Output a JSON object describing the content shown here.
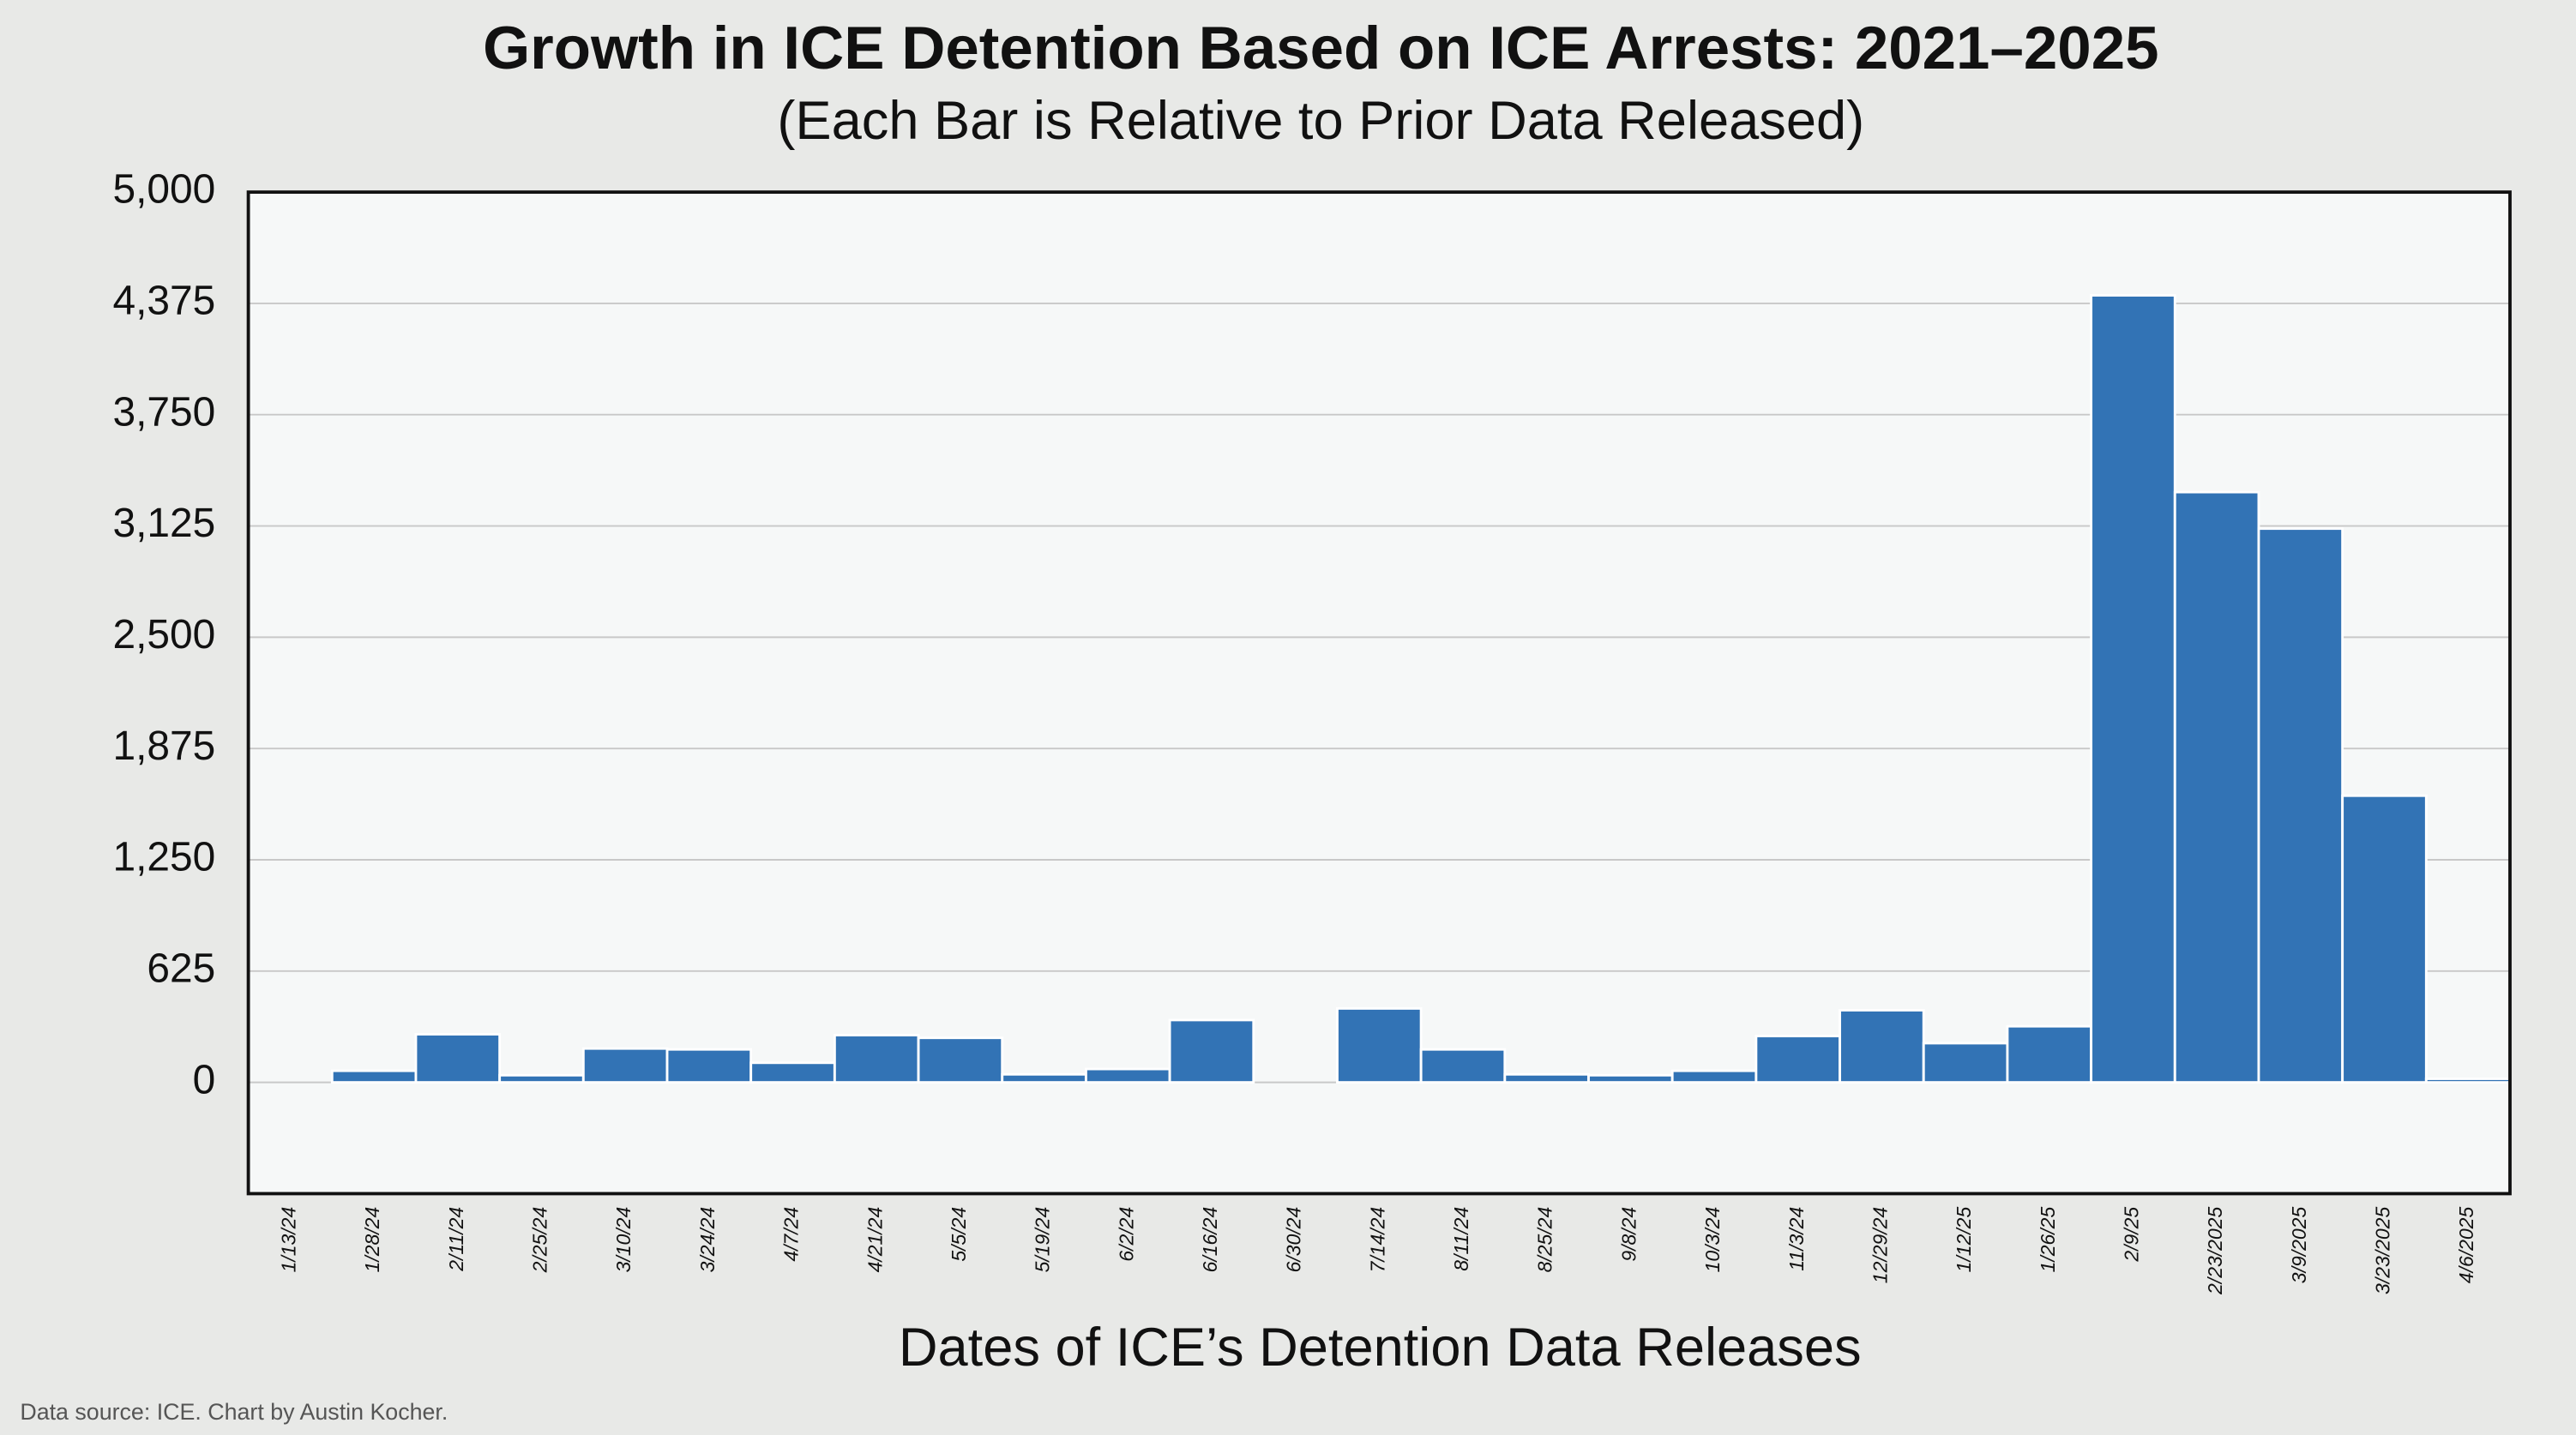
{
  "chart_data": {
    "type": "bar",
    "title": "Growth in ICE Detention Based on ICE Arrests: 2021–2025",
    "subtitle": "(Each Bar is Relative to Prior Data Released)",
    "x_label": "Dates of ICE’s Detention Data Releases",
    "source": "Data source: ICE. Chart by Austin Kocher.",
    "categories": [
      "1/13/24",
      "1/28/24",
      "2/11/24",
      "2/25/24",
      "3/10/24",
      "3/24/24",
      "4/7/24",
      "4/21/24",
      "5/5/24",
      "5/19/24",
      "6/2/24",
      "6/16/24",
      "6/30/24",
      "7/14/24",
      "8/11/24",
      "8/25/24",
      "9/8/24",
      "10/3/24",
      "11/3/24",
      "12/29/24",
      "1/12/25",
      "1/26/25",
      "2/9/25",
      "2/23/2025",
      "3/9/2025",
      "3/23/2025",
      "4/6/2025"
    ],
    "values": [
      0,
      65,
      270,
      40,
      190,
      185,
      110,
      265,
      250,
      45,
      75,
      350,
      0,
      415,
      185,
      45,
      40,
      65,
      260,
      405,
      220,
      315,
      4420,
      3315,
      3110,
      1610,
      20
    ],
    "color": "#3273b5",
    "ylim": [
      -625,
      5000
    ],
    "yticks": [
      0,
      625,
      {
        "value": 1250,
        "label": "1,250"
      },
      {
        "value": 1875,
        "label": "1,875"
      },
      {
        "value": 2500,
        "label": "2,500"
      },
      {
        "value": 3125,
        "label": "3,125"
      },
      {
        "value": 3750,
        "label": "3,750"
      },
      {
        "value": 4375,
        "label": "4,375"
      },
      {
        "value": 5000,
        "label": "5,000"
      }
    ],
    "grid": true
  }
}
